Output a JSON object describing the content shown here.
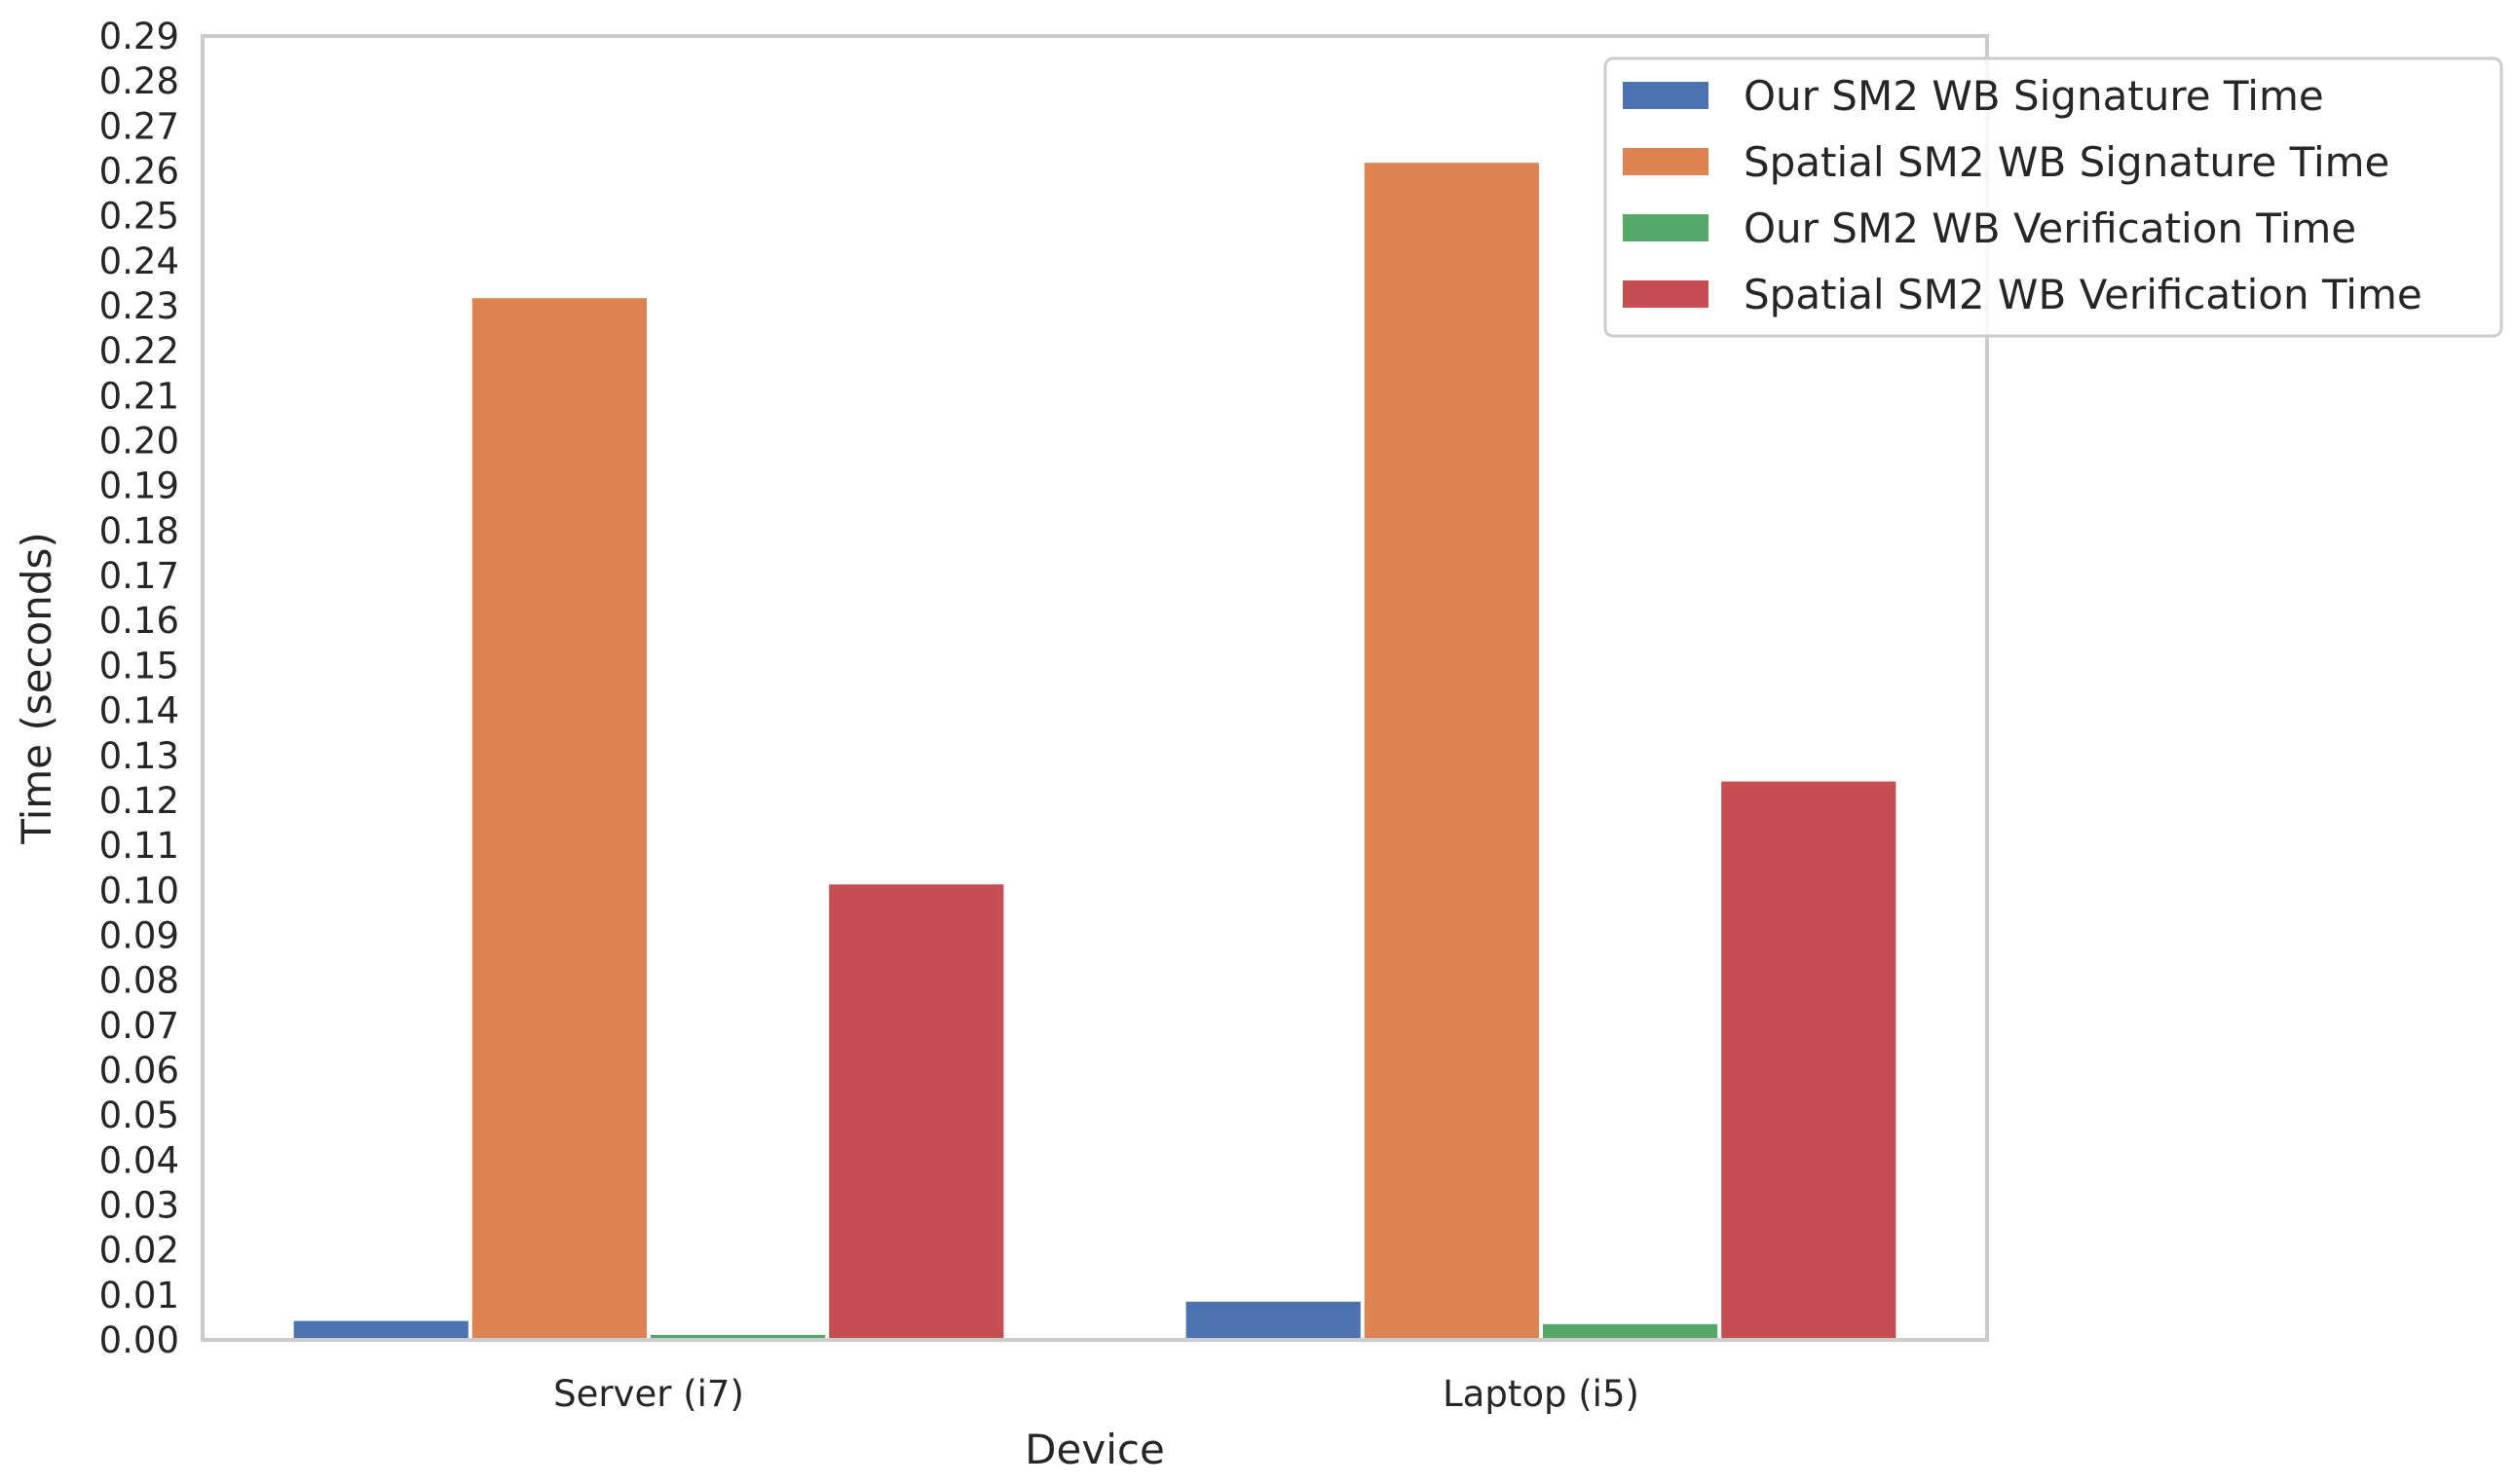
{
  "chart_data": {
    "type": "bar",
    "categories": [
      "Server (i7)",
      "Laptop (i5)"
    ],
    "series": [
      {
        "name": "Our SM2 WB Signature Time",
        "values": [
          0.0042,
          0.0085
        ],
        "color": "#4c72b0"
      },
      {
        "name": "Spatial SM2 WB Signature Time",
        "values": [
          0.2317,
          0.2618
        ],
        "color": "#dd8452"
      },
      {
        "name": "Our SM2 WB Verification Time",
        "values": [
          0.0011,
          0.0035
        ],
        "color": "#55a868"
      },
      {
        "name": "Spatial SM2 WB Verification Time",
        "values": [
          0.1013,
          0.1242
        ],
        "color": "#c44e52"
      }
    ],
    "title": "",
    "xlabel": "Device",
    "ylabel": "Time (seconds)",
    "ylim": [
      0,
      0.29
    ],
    "yticks": [
      "0.00",
      "0.01",
      "0.02",
      "0.03",
      "0.04",
      "0.05",
      "0.06",
      "0.07",
      "0.08",
      "0.09",
      "0.10",
      "0.11",
      "0.12",
      "0.13",
      "0.14",
      "0.15",
      "0.16",
      "0.17",
      "0.18",
      "0.19",
      "0.20",
      "0.21",
      "0.22",
      "0.23",
      "0.24",
      "0.25",
      "0.26",
      "0.27",
      "0.28",
      "0.29"
    ],
    "grid": false,
    "legend_position": "top-right"
  }
}
